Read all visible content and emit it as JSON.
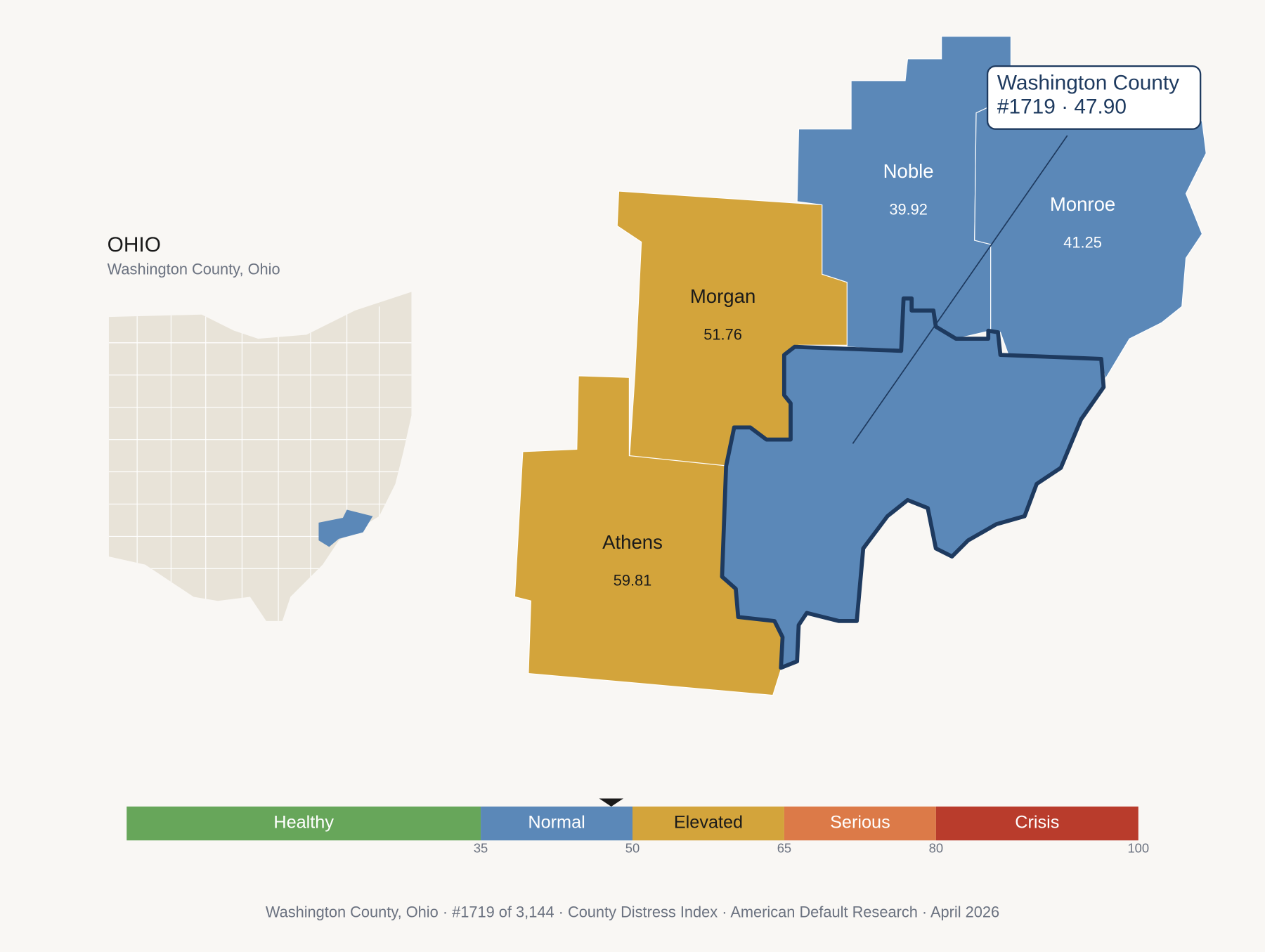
{
  "header": {
    "title": "OHIO",
    "subtitle": "Washington County, Ohio"
  },
  "selected": {
    "score": 47.9,
    "callout": [
      "Washington County",
      "#1719 · 47.90"
    ]
  },
  "counties": [
    {
      "name": "Noble",
      "value": 39.92
    },
    {
      "name": "Monroe",
      "value": 41.25
    },
    {
      "name": "Morgan",
      "value": 51.76
    },
    {
      "name": "Athens",
      "value": 59.81
    }
  ],
  "scale": {
    "xlim": [
      0,
      100
    ],
    "ticks": [
      35,
      50,
      65,
      80,
      100
    ],
    "segments": [
      {
        "label": "Healthy",
        "color": "#67a65a",
        "text_color": "#ffffff"
      },
      {
        "label": "Normal",
        "color": "#5b88b8",
        "text_color": "#ffffff"
      },
      {
        "label": "Elevated",
        "color": "#d3a43b",
        "text_color": "#1a1a1a"
      },
      {
        "label": "Serious",
        "color": "#dc7a48",
        "text_color": "#ffffff"
      },
      {
        "label": "Crisis",
        "color": "#b93c2c",
        "text_color": "#ffffff"
      }
    ]
  },
  "footer": "Washington County, Ohio  ·  #1719 of 3,144  ·  County Distress Index  ·  American Default Research  ·  April 2026"
}
